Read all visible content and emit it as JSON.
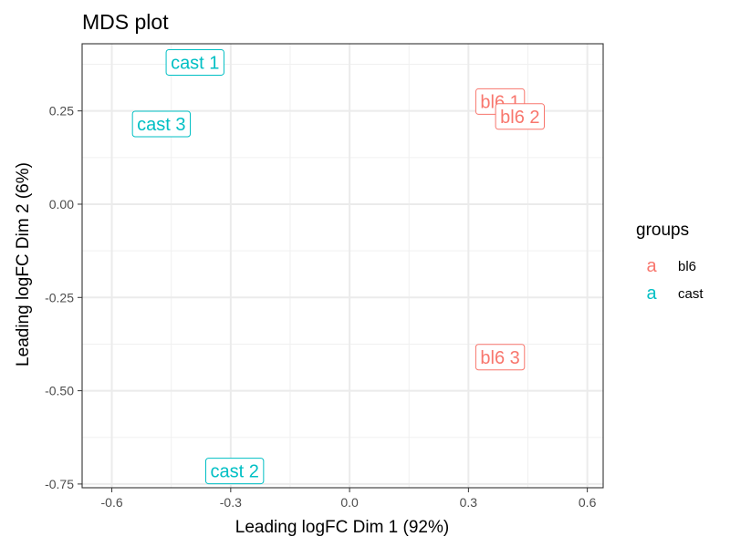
{
  "chart_data": {
    "type": "scatter",
    "title": "MDS plot",
    "xlabel": "Leading logFC Dim 1 (92%)",
    "ylabel": "Leading logFC Dim 2 (6%)",
    "xlim": [
      -0.675,
      0.64
    ],
    "ylim": [
      -0.76,
      0.43
    ],
    "x_ticks": [
      -0.6,
      -0.3,
      0.0,
      0.3,
      0.6
    ],
    "x_tick_labels": [
      "-0.6",
      "-0.3",
      "0.0",
      "0.3",
      "0.6"
    ],
    "y_ticks": [
      -0.75,
      -0.5,
      -0.25,
      0.0,
      0.25
    ],
    "y_tick_labels": [
      "-0.75",
      "-0.50",
      "-0.25",
      "0.00",
      "0.25"
    ],
    "grid": true,
    "legend": {
      "title": "groups",
      "placement": "right",
      "key_glyph": "a",
      "entries": [
        {
          "name": "bl6",
          "color": "#F8766D"
        },
        {
          "name": "cast",
          "color": "#00BFC4"
        }
      ]
    },
    "series": [
      {
        "name": "bl6",
        "color": "#F8766D",
        "points": [
          {
            "label": "bl6 1",
            "x": 0.38,
            "y": 0.275
          },
          {
            "label": "bl6 2",
            "x": 0.43,
            "y": 0.235
          },
          {
            "label": "bl6 3",
            "x": 0.38,
            "y": -0.41
          }
        ]
      },
      {
        "name": "cast",
        "color": "#00BFC4",
        "points": [
          {
            "label": "cast 1",
            "x": -0.39,
            "y": 0.38
          },
          {
            "label": "cast 2",
            "x": -0.29,
            "y": -0.715
          },
          {
            "label": "cast 3",
            "x": -0.475,
            "y": 0.215
          }
        ]
      }
    ]
  }
}
